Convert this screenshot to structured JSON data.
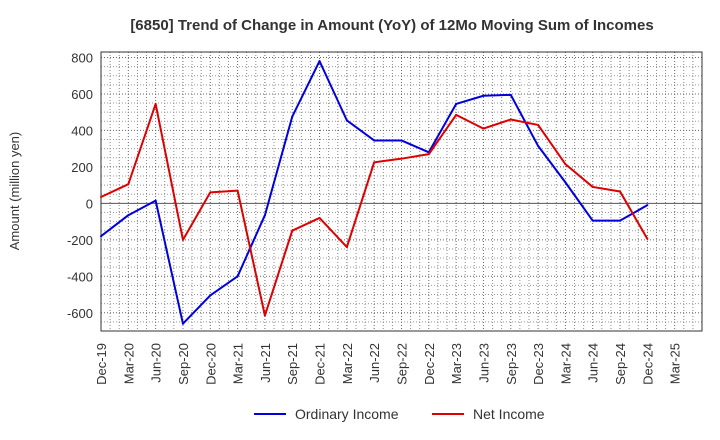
{
  "chart_data": {
    "type": "line",
    "title": "[6850]  Trend of Change in Amount (YoY) of 12Mo Moving Sum of Incomes",
    "xlabel": "",
    "ylabel": "Amount (million yen)",
    "ylim": [
      -700,
      830
    ],
    "yticks": [
      -600,
      -400,
      -200,
      0,
      200,
      400,
      600,
      800
    ],
    "categories": [
      "Dec-19",
      "Mar-20",
      "Jun-20",
      "Sep-20",
      "Dec-20",
      "Mar-21",
      "Jun-21",
      "Sep-21",
      "Dec-21",
      "Mar-22",
      "Jun-22",
      "Sep-22",
      "Dec-22",
      "Mar-23",
      "Jun-23",
      "Sep-23",
      "Dec-23",
      "Mar-24",
      "Jun-24",
      "Sep-24",
      "Dec-24",
      "Mar-25"
    ],
    "grid": true,
    "legend_position": "bottom",
    "series": [
      {
        "name": "Ordinary Income",
        "color": "#0000dd",
        "values": [
          -180,
          -65,
          15,
          -660,
          -505,
          -400,
          -65,
          475,
          780,
          455,
          345,
          345,
          280,
          545,
          590,
          595,
          315,
          115,
          -95,
          -95,
          -10,
          null
        ]
      },
      {
        "name": "Net Income",
        "color": "#dd0000",
        "values": [
          35,
          105,
          545,
          -200,
          60,
          70,
          -615,
          -150,
          -80,
          -240,
          225,
          245,
          270,
          485,
          410,
          460,
          430,
          215,
          90,
          65,
          -195,
          null
        ]
      }
    ]
  }
}
